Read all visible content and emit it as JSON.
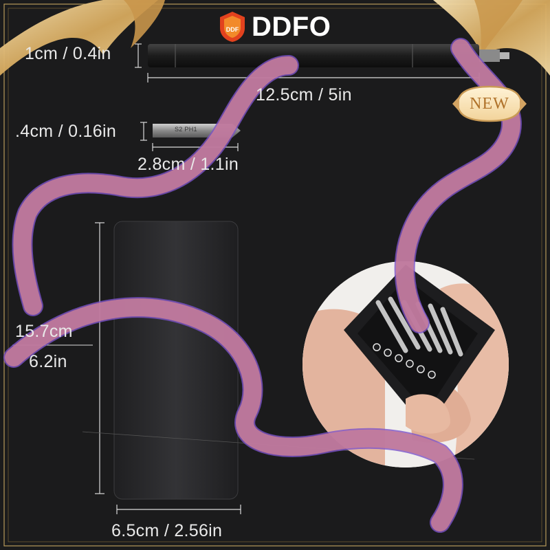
{
  "brand": {
    "name": "DDFO",
    "logo_text": "DDF"
  },
  "badge": {
    "label": "NEW"
  },
  "dimensions": {
    "handle_diameter": "1cm / 0.4in",
    "handle_length": "12.5cm / 5in",
    "bit_diameter": ".4cm / 0.16in",
    "bit_label": "S2 PH1",
    "bit_length": "2.8cm / 1.1in",
    "case_height_cm": "15.7cm",
    "case_height_in": "6.2in",
    "case_width": "6.5cm / 2.56in"
  },
  "colors": {
    "background": "#1b1b1c",
    "ribbon": "#c97f98",
    "ribbon_edge": "#7a52c9",
    "gold": "#d9b26a",
    "case": "#2b2b2d"
  }
}
